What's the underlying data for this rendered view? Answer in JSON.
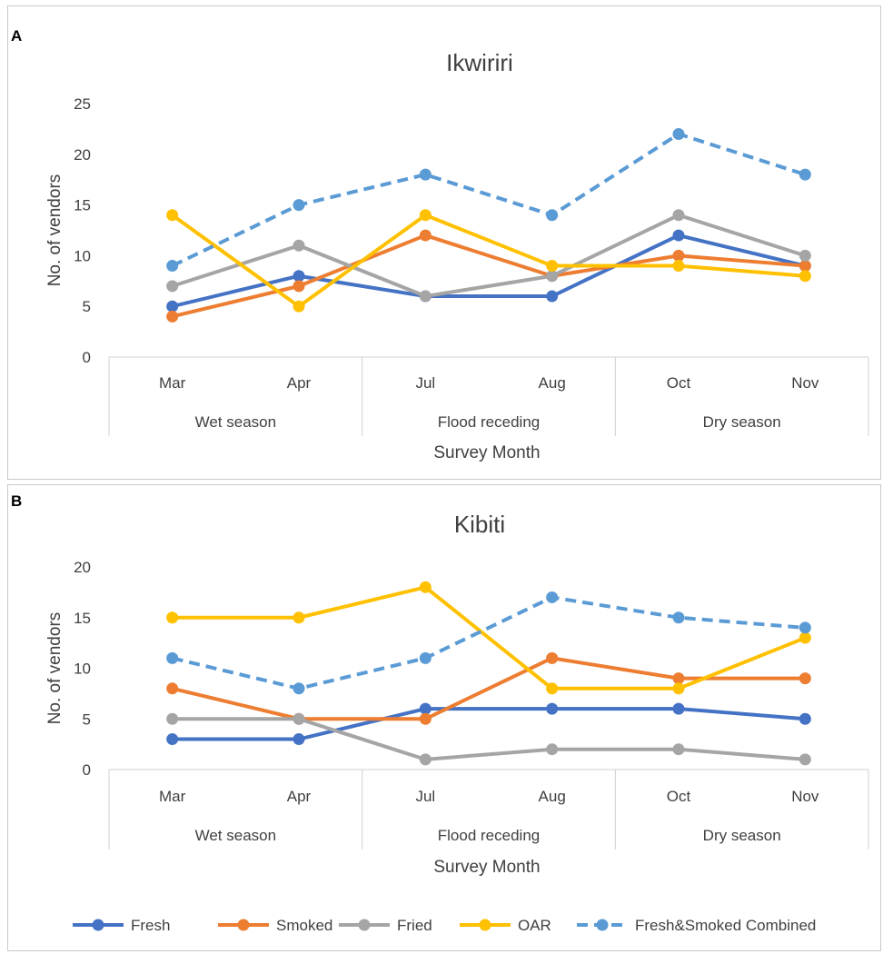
{
  "chart_data": [
    {
      "panel_label": "A",
      "type": "line",
      "title": "Ikwiriri",
      "ylabel": "No. of vendors",
      "xlabel": "Survey Month",
      "ylim": [
        0,
        25
      ],
      "yticks": [
        0,
        5,
        10,
        15,
        20,
        25
      ],
      "categories": [
        "Mar",
        "Apr",
        "Jul",
        "Aug",
        "Oct",
        "Nov"
      ],
      "groups": [
        {
          "label": "Wet season",
          "span": 2
        },
        {
          "label": "Flood receding",
          "span": 2
        },
        {
          "label": "Dry season",
          "span": 2
        }
      ],
      "grid": false,
      "series": [
        {
          "name": "Fresh",
          "color": "#4472c4",
          "dashed": false,
          "values": [
            5,
            8,
            6,
            6,
            12,
            9
          ]
        },
        {
          "name": "Smoked",
          "color": "#ed7d31",
          "dashed": false,
          "values": [
            4,
            7,
            12,
            8,
            10,
            9
          ]
        },
        {
          "name": "Fried",
          "color": "#a5a5a5",
          "dashed": false,
          "values": [
            7,
            11,
            6,
            8,
            14,
            10
          ]
        },
        {
          "name": "OAR",
          "color": "#ffc000",
          "dashed": false,
          "values": [
            14,
            5,
            14,
            9,
            9,
            8
          ]
        },
        {
          "name": "Fresh&Smoked Combined",
          "color": "#5b9bd5",
          "dashed": true,
          "values": [
            9,
            15,
            18,
            14,
            22,
            18
          ]
        }
      ]
    },
    {
      "panel_label": "B",
      "type": "line",
      "title": "Kibiti",
      "ylabel": "No. of vendors",
      "xlabel": "Survey Month",
      "ylim": [
        0,
        20
      ],
      "yticks": [
        0,
        5,
        10,
        15,
        20
      ],
      "categories": [
        "Mar",
        "Apr",
        "Jul",
        "Aug",
        "Oct",
        "Nov"
      ],
      "groups": [
        {
          "label": "Wet season",
          "span": 2
        },
        {
          "label": "Flood receding",
          "span": 2
        },
        {
          "label": "Dry season",
          "span": 2
        }
      ],
      "grid": false,
      "series": [
        {
          "name": "Fresh",
          "color": "#4472c4",
          "dashed": false,
          "values": [
            3,
            3,
            6,
            6,
            6,
            5
          ]
        },
        {
          "name": "Smoked",
          "color": "#ed7d31",
          "dashed": false,
          "values": [
            8,
            5,
            5,
            11,
            9,
            9
          ]
        },
        {
          "name": "Fried",
          "color": "#a5a5a5",
          "dashed": false,
          "values": [
            5,
            5,
            1,
            2,
            2,
            1
          ]
        },
        {
          "name": "OAR",
          "color": "#ffc000",
          "dashed": false,
          "values": [
            15,
            15,
            18,
            8,
            8,
            13
          ]
        },
        {
          "name": "Fresh&Smoked Combined",
          "color": "#5b9bd5",
          "dashed": true,
          "values": [
            11,
            8,
            11,
            17,
            15,
            14
          ]
        }
      ]
    }
  ],
  "legend": {
    "placement": "bottom",
    "items": [
      {
        "name": "Fresh",
        "color": "#4472c4",
        "dashed": false
      },
      {
        "name": "Smoked",
        "color": "#ed7d31",
        "dashed": false
      },
      {
        "name": "Fried",
        "color": "#a5a5a5",
        "dashed": false
      },
      {
        "name": "OAR",
        "color": "#ffc000",
        "dashed": false
      },
      {
        "name": "Fresh&Smoked Combined",
        "color": "#5b9bd5",
        "dashed": true
      }
    ]
  }
}
